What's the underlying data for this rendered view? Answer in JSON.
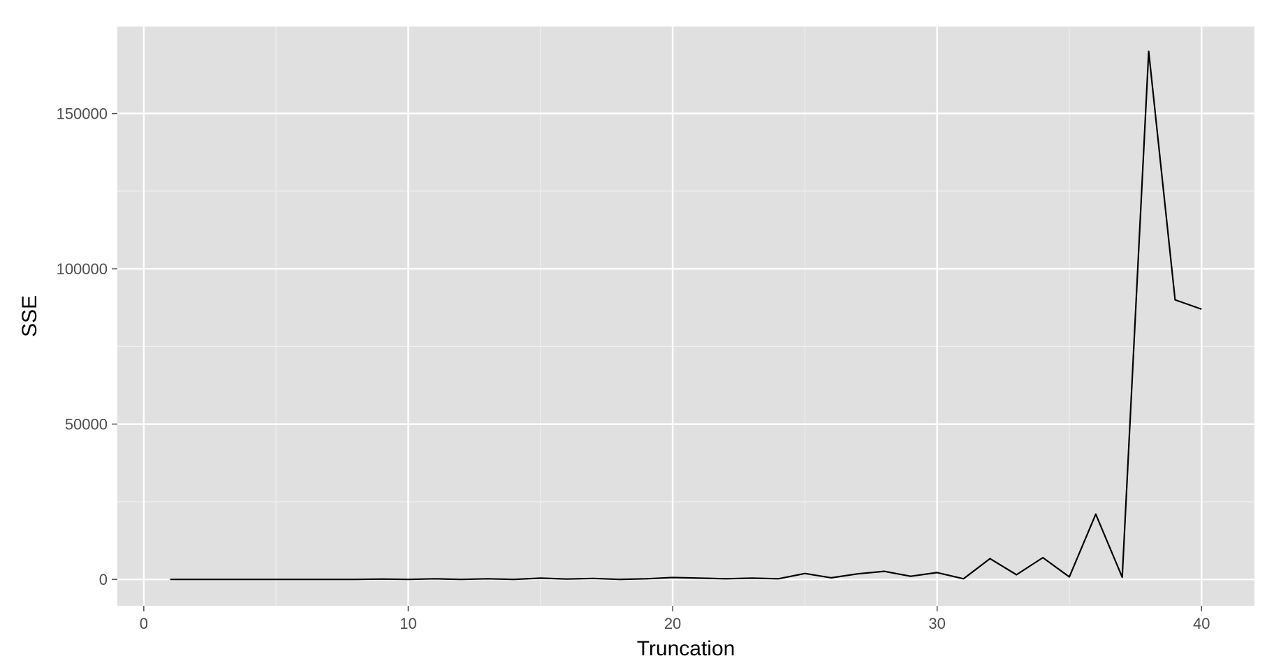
{
  "chart_data": {
    "type": "line",
    "title": "",
    "xlabel": "Truncation",
    "ylabel": "SSE",
    "xlim": [
      -1,
      42
    ],
    "ylim": [
      -8500,
      178000
    ],
    "x_ticks": [
      0,
      10,
      20,
      30,
      40
    ],
    "x_tick_labels": [
      "0",
      "10",
      "20",
      "30",
      "40"
    ],
    "y_ticks": [
      0,
      50000,
      100000,
      150000
    ],
    "y_tick_labels": [
      "0",
      "50000",
      "100000",
      "150000"
    ],
    "x_minor_ticks": [
      5,
      15,
      25,
      35
    ],
    "y_minor_ticks": [
      25000,
      75000,
      125000
    ],
    "grid": true,
    "legend": "none",
    "colors": {
      "panel": "#e0e0e0",
      "grid_major": "#ffffff",
      "grid_minor": "#efefef",
      "line": "#000000",
      "tick_label": "#4d4d4d",
      "axis_title": "#000000"
    },
    "series": [
      {
        "x": [
          1,
          2,
          3,
          4,
          5,
          6,
          7,
          8,
          9,
          10,
          11,
          12,
          13,
          14,
          15,
          16,
          17,
          18,
          19,
          20,
          21,
          22,
          23,
          24,
          25,
          26,
          27,
          28,
          29,
          30,
          31,
          32,
          33,
          34,
          35,
          36,
          37,
          38,
          39,
          40
        ],
        "values": [
          0,
          0,
          0,
          0,
          0,
          0,
          0,
          0,
          100,
          0,
          200,
          0,
          200,
          0,
          400,
          100,
          300,
          0,
          200,
          600,
          400,
          200,
          400,
          200,
          1900,
          500,
          1800,
          2600,
          1000,
          2200,
          200,
          6700,
          1500,
          7000,
          800,
          21000,
          700,
          170000,
          90000,
          87000
        ]
      }
    ]
  }
}
